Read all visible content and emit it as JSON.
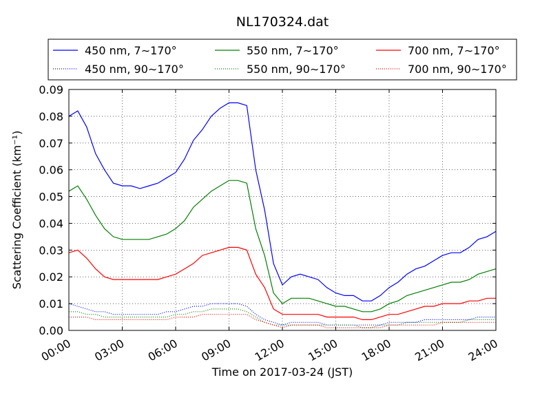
{
  "chart_data": {
    "type": "line",
    "title": "NL170324.dat",
    "xlabel": "Time on 2017-03-24 (JST)",
    "ylabel": "Scattering Coefficient (km⁻¹)",
    "xlim": [
      "00:00",
      "24:00"
    ],
    "ylim": [
      0,
      0.09
    ],
    "grid": true,
    "legend": "top",
    "x_ticks": [
      "00:00",
      "03:00",
      "06:00",
      "09:00",
      "12:00",
      "15:00",
      "18:00",
      "21:00",
      "24:00"
    ],
    "y_ticks": [
      "0.00",
      "0.01",
      "0.02",
      "0.03",
      "0.04",
      "0.05",
      "0.06",
      "0.07",
      "0.08",
      "0.09"
    ],
    "x": [
      "00:00",
      "00:30",
      "01:00",
      "01:30",
      "02:00",
      "02:30",
      "03:00",
      "03:30",
      "04:00",
      "04:30",
      "05:00",
      "05:30",
      "06:00",
      "06:30",
      "07:00",
      "07:30",
      "08:00",
      "08:30",
      "09:00",
      "09:30",
      "10:00",
      "10:30",
      "11:00",
      "11:30",
      "12:00",
      "12:30",
      "13:00",
      "13:30",
      "14:00",
      "14:30",
      "15:00",
      "15:30",
      "16:00",
      "16:30",
      "17:00",
      "17:30",
      "18:00",
      "18:30",
      "19:00",
      "19:30",
      "20:00",
      "20:30",
      "21:00",
      "21:30",
      "22:00",
      "22:30",
      "23:00",
      "23:30",
      "24:00"
    ],
    "series": [
      {
        "name": "450 nm, 7∼170°",
        "color": "#0000ff",
        "style": "solid",
        "values": [
          0.08,
          0.082,
          0.076,
          0.066,
          0.06,
          0.055,
          0.054,
          0.054,
          0.053,
          0.054,
          0.055,
          0.057,
          0.059,
          0.064,
          0.071,
          0.075,
          0.08,
          0.083,
          0.085,
          0.085,
          0.084,
          0.06,
          0.045,
          0.025,
          0.017,
          0.02,
          0.021,
          0.02,
          0.019,
          0.016,
          0.014,
          0.013,
          0.013,
          0.011,
          0.011,
          0.013,
          0.016,
          0.018,
          0.021,
          0.023,
          0.024,
          0.026,
          0.028,
          0.029,
          0.029,
          0.031,
          0.034,
          0.035,
          0.037
        ]
      },
      {
        "name": "450 nm, 90∼170°",
        "color": "#0000ff",
        "style": "dotted",
        "values": [
          0.01,
          0.009,
          0.008,
          0.007,
          0.007,
          0.006,
          0.006,
          0.006,
          0.006,
          0.006,
          0.006,
          0.007,
          0.007,
          0.008,
          0.009,
          0.009,
          0.01,
          0.01,
          0.01,
          0.01,
          0.009,
          0.006,
          0.004,
          0.003,
          0.002,
          0.003,
          0.003,
          0.003,
          0.003,
          0.002,
          0.002,
          0.002,
          0.002,
          0.002,
          0.002,
          0.002,
          0.003,
          0.003,
          0.003,
          0.003,
          0.004,
          0.004,
          0.004,
          0.004,
          0.004,
          0.004,
          0.005,
          0.005,
          0.005
        ]
      },
      {
        "name": "550 nm, 7∼170°",
        "color": "#008000",
        "style": "solid",
        "values": [
          0.052,
          0.054,
          0.049,
          0.043,
          0.038,
          0.035,
          0.034,
          0.034,
          0.034,
          0.034,
          0.035,
          0.036,
          0.038,
          0.041,
          0.046,
          0.049,
          0.052,
          0.054,
          0.056,
          0.056,
          0.055,
          0.038,
          0.028,
          0.014,
          0.01,
          0.012,
          0.012,
          0.012,
          0.011,
          0.01,
          0.009,
          0.009,
          0.008,
          0.007,
          0.007,
          0.008,
          0.01,
          0.011,
          0.013,
          0.014,
          0.015,
          0.016,
          0.017,
          0.018,
          0.018,
          0.019,
          0.021,
          0.022,
          0.023
        ]
      },
      {
        "name": "550 nm, 90∼170°",
        "color": "#008000",
        "style": "dotted",
        "values": [
          0.007,
          0.007,
          0.006,
          0.006,
          0.005,
          0.005,
          0.005,
          0.005,
          0.005,
          0.005,
          0.005,
          0.005,
          0.006,
          0.006,
          0.007,
          0.007,
          0.008,
          0.008,
          0.008,
          0.008,
          0.007,
          0.005,
          0.003,
          0.002,
          0.002,
          0.002,
          0.002,
          0.002,
          0.002,
          0.002,
          0.002,
          0.002,
          0.002,
          0.001,
          0.001,
          0.002,
          0.002,
          0.002,
          0.003,
          0.003,
          0.003,
          0.003,
          0.003,
          0.003,
          0.003,
          0.004,
          0.004,
          0.004,
          0.004
        ]
      },
      {
        "name": "700 nm, 7∼170°",
        "color": "#ff0000",
        "style": "solid",
        "values": [
          0.029,
          0.03,
          0.027,
          0.023,
          0.02,
          0.019,
          0.019,
          0.019,
          0.019,
          0.019,
          0.019,
          0.02,
          0.021,
          0.023,
          0.025,
          0.028,
          0.029,
          0.03,
          0.031,
          0.031,
          0.03,
          0.021,
          0.016,
          0.008,
          0.006,
          0.006,
          0.006,
          0.006,
          0.006,
          0.005,
          0.005,
          0.005,
          0.005,
          0.004,
          0.004,
          0.005,
          0.006,
          0.006,
          0.007,
          0.008,
          0.009,
          0.009,
          0.01,
          0.01,
          0.01,
          0.011,
          0.011,
          0.012,
          0.012
        ]
      },
      {
        "name": "700 nm, 90∼170°",
        "color": "#ff0000",
        "style": "dotted",
        "values": [
          0.005,
          0.005,
          0.005,
          0.004,
          0.004,
          0.004,
          0.004,
          0.004,
          0.004,
          0.004,
          0.004,
          0.004,
          0.005,
          0.005,
          0.005,
          0.006,
          0.006,
          0.006,
          0.006,
          0.006,
          0.006,
          0.004,
          0.003,
          0.002,
          0.001,
          0.002,
          0.002,
          0.002,
          0.002,
          0.001,
          0.001,
          0.001,
          0.001,
          0.001,
          0.001,
          0.001,
          0.002,
          0.002,
          0.002,
          0.002,
          0.002,
          0.002,
          0.003,
          0.003,
          0.003,
          0.003,
          0.003,
          0.003,
          0.003
        ]
      }
    ]
  }
}
